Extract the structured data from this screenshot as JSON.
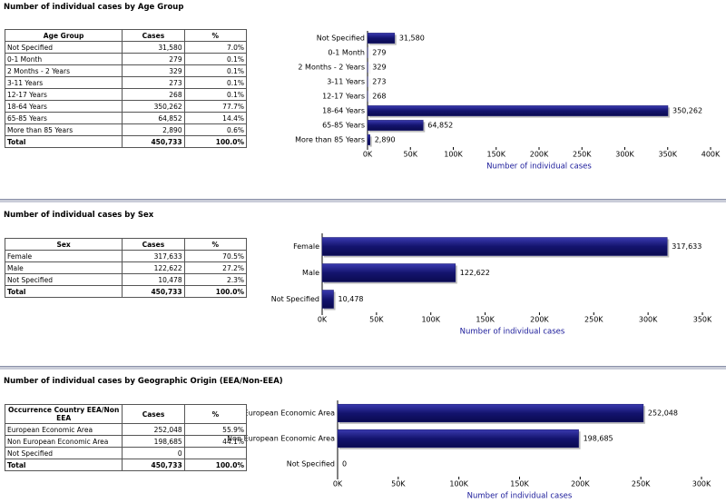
{
  "sections": [
    {
      "title": "Number of individual cases by Age Group",
      "table": {
        "header": [
          "Age Group",
          "Cases",
          "%"
        ],
        "rows": [
          [
            "Not Specified",
            "31,580",
            "7.0%"
          ],
          [
            "0-1 Month",
            "279",
            "0.1%"
          ],
          [
            "2 Months - 2 Years",
            "329",
            "0.1%"
          ],
          [
            "3-11 Years",
            "273",
            "0.1%"
          ],
          [
            "12-17 Years",
            "268",
            "0.1%"
          ],
          [
            "18-64 Years",
            "350,262",
            "77.7%"
          ],
          [
            "65-85 Years",
            "64,852",
            "14.4%"
          ],
          [
            "More than 85 Years",
            "2,890",
            "0.6%"
          ]
        ],
        "total": [
          "Total",
          "450,733",
          "100.0%"
        ]
      }
    },
    {
      "title": "Number of individual cases by Sex",
      "table": {
        "header": [
          "Sex",
          "Cases",
          "%"
        ],
        "rows": [
          [
            "Female",
            "317,633",
            "70.5%"
          ],
          [
            "Male",
            "122,622",
            "27.2%"
          ],
          [
            "Not Specified",
            "10,478",
            "2.3%"
          ]
        ],
        "total": [
          "Total",
          "450,733",
          "100.0%"
        ]
      }
    },
    {
      "title": "Number of individual cases by Geographic Origin (EEA/Non-EEA)",
      "table": {
        "header": [
          "Occurrence Country EEA/Non EEA",
          "Cases",
          "%"
        ],
        "rows": [
          [
            "European Economic Area",
            "252,048",
            "55.9%"
          ],
          [
            "Non European Economic Area",
            "198,685",
            "44.1%"
          ],
          [
            "Not Specified",
            "0",
            ""
          ]
        ],
        "total": [
          "Total",
          "450,733",
          "100.0%"
        ]
      }
    }
  ],
  "chart_data": [
    {
      "type": "bar",
      "orientation": "horizontal",
      "color": "#14146e",
      "xlabel": "Number of individual cases",
      "categories": [
        "Not Specified",
        "0-1 Month",
        "2 Months - 2 Years",
        "3-11 Years",
        "12-17 Years",
        "18-64 Years",
        "65-85 Years",
        "More than 85 Years"
      ],
      "values": [
        31580,
        279,
        329,
        273,
        268,
        350262,
        64852,
        2890
      ],
      "value_labels": [
        "31,580",
        "279",
        "329",
        "273",
        "268",
        "350,262",
        "64,852",
        "2,890"
      ],
      "xlim": [
        0,
        400000
      ],
      "xticks": [
        {
          "value": 0,
          "label": "0K"
        },
        {
          "value": 50000,
          "label": "50K"
        },
        {
          "value": 100000,
          "label": "100K"
        },
        {
          "value": 150000,
          "label": "150K"
        },
        {
          "value": 200000,
          "label": "200K"
        },
        {
          "value": 250000,
          "label": "250K"
        },
        {
          "value": 300000,
          "label": "300K"
        },
        {
          "value": 350000,
          "label": "350K"
        },
        {
          "value": 400000,
          "label": "400K"
        }
      ]
    },
    {
      "type": "bar",
      "orientation": "horizontal",
      "color": "#14146e",
      "xlabel": "Number of individual cases",
      "categories": [
        "Female",
        "Male",
        "Not Specified"
      ],
      "values": [
        317633,
        122622,
        10478
      ],
      "value_labels": [
        "317,633",
        "122,622",
        "10,478"
      ],
      "xlim": [
        0,
        350000
      ],
      "xticks": [
        {
          "value": 0,
          "label": "0K"
        },
        {
          "value": 50000,
          "label": "50K"
        },
        {
          "value": 100000,
          "label": "100K"
        },
        {
          "value": 150000,
          "label": "150K"
        },
        {
          "value": 200000,
          "label": "200K"
        },
        {
          "value": 250000,
          "label": "250K"
        },
        {
          "value": 300000,
          "label": "300K"
        },
        {
          "value": 350000,
          "label": "350K"
        }
      ]
    },
    {
      "type": "bar",
      "orientation": "horizontal",
      "color": "#14146e",
      "xlabel": "Number of individual cases",
      "categories": [
        "European Economic Area",
        "Non European Economic Area",
        "Not Specified"
      ],
      "values": [
        252048,
        198685,
        0
      ],
      "value_labels": [
        "252,048",
        "198,685",
        "0"
      ],
      "xlim": [
        0,
        300000
      ],
      "xticks": [
        {
          "value": 0,
          "label": "0K"
        },
        {
          "value": 50000,
          "label": "50K"
        },
        {
          "value": 100000,
          "label": "100K"
        },
        {
          "value": 150000,
          "label": "150K"
        },
        {
          "value": 200000,
          "label": "200K"
        },
        {
          "value": 250000,
          "label": "250K"
        },
        {
          "value": 300000,
          "label": "300K"
        }
      ]
    }
  ]
}
